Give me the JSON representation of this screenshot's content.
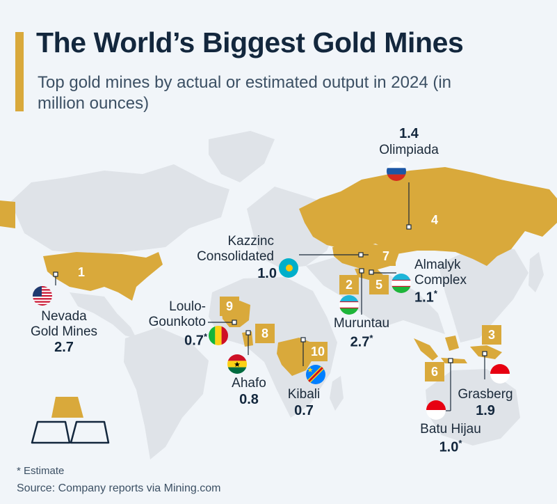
{
  "title": "The World’s Biggest Gold Mines",
  "subtitle": "Top gold mines by actual or estimated output in 2024 (in million ounces)",
  "footnote": "* Estimate",
  "source": "Source: Company reports via Mining.com",
  "colors": {
    "accent": "#d9a93b",
    "land": "#dfe3e8",
    "background": "#f1f5f9",
    "text": "#13273d"
  },
  "chart_data": {
    "type": "map",
    "title": "The World’s Biggest Gold Mines",
    "unit": "million ounces",
    "mines": [
      {
        "rank": "1",
        "name": "Nevada Gold Mines",
        "country": "United States",
        "value": 2.7,
        "value_text": "2.7",
        "estimate": false
      },
      {
        "rank": "2",
        "name": "Muruntau",
        "country": "Uzbekistan",
        "value": 2.7,
        "value_text": "2.7",
        "estimate": true
      },
      {
        "rank": "3",
        "name": "Grasberg",
        "country": "Indonesia",
        "value": 1.9,
        "value_text": "1.9",
        "estimate": false
      },
      {
        "rank": "4",
        "name": "Olimpiada",
        "country": "Russia",
        "value": 1.4,
        "value_text": "1.4",
        "estimate": false
      },
      {
        "rank": "5",
        "name": "Almalyk Complex",
        "country": "Uzbekistan",
        "value": 1.1,
        "value_text": "1.1",
        "estimate": true
      },
      {
        "rank": "6",
        "name": "Batu Hijau",
        "country": "Indonesia",
        "value": 1.0,
        "value_text": "1.0",
        "estimate": true
      },
      {
        "rank": "7",
        "name": "Kazzinc Consolidated",
        "country": "Kazakhstan",
        "value": 1.0,
        "value_text": "1.0",
        "estimate": false
      },
      {
        "rank": "8",
        "name": "Ahafo",
        "country": "Ghana",
        "value": 0.8,
        "value_text": "0.8",
        "estimate": false
      },
      {
        "rank": "9",
        "name": "Loulo-Gounkoto",
        "country": "Mali",
        "value": 0.7,
        "value_text": "0.7",
        "estimate": true
      },
      {
        "rank": "10",
        "name": "Kibali",
        "country": "DR Congo",
        "value": 0.7,
        "value_text": "0.7",
        "estimate": false
      }
    ],
    "labels": {
      "nevada": [
        "Nevada",
        "Gold Mines"
      ],
      "muruntau": "Muruntau",
      "grasberg": "Grasberg",
      "olimpiada": "Olimpiada",
      "almalyk": [
        "Almalyk",
        "Complex"
      ],
      "batu": "Batu Hijau",
      "kazzinc": [
        "Kazzinc",
        "Consolidated"
      ],
      "ahafo": "Ahafo",
      "loulo": [
        "Loulo-",
        "Gounkoto"
      ],
      "kibali": "Kibali"
    },
    "highlighted_countries": [
      "United States",
      "Russia",
      "Uzbekistan",
      "Kazakhstan",
      "Indonesia",
      "Mali",
      "Ghana",
      "DR Congo"
    ],
    "estimate_marker": "*"
  }
}
